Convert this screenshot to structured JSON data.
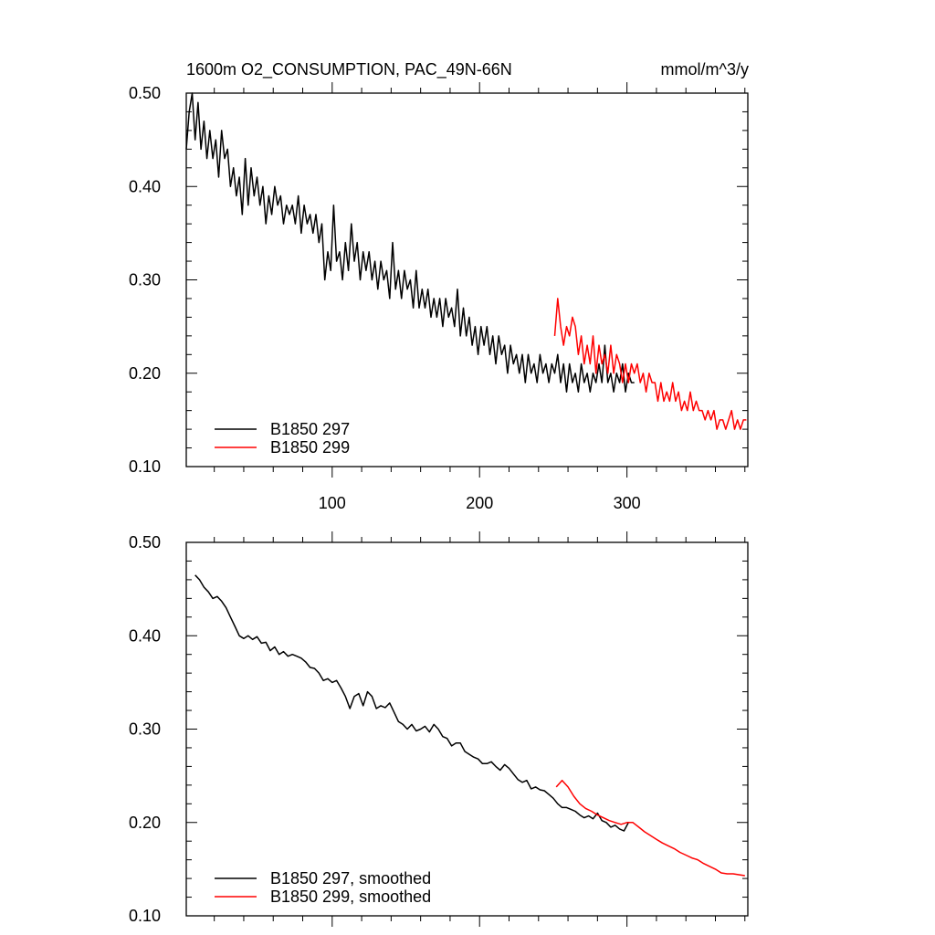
{
  "chart_data": [
    {
      "type": "line",
      "title": "1600m O2_CONSUMPTION, PAC_49N-66N",
      "units": "mmol/m^3/y",
      "xlabel": "",
      "ylabel": "",
      "xlim": [
        1,
        382
      ],
      "ylim": [
        0.1,
        0.5
      ],
      "xticks": [
        100,
        200,
        300
      ],
      "xtick_labels": [
        "100",
        "200",
        "300"
      ],
      "yticks": [
        0.1,
        0.2,
        0.3,
        0.4,
        0.5
      ],
      "ytick_labels": [
        "0.10",
        "0.20",
        "0.30",
        "0.40",
        "0.50"
      ],
      "legend_position": "bottom-left",
      "series": [
        {
          "name": "B1850 297",
          "color": "#000000",
          "x": [
            1,
            3,
            5,
            7,
            9,
            11,
            13,
            15,
            17,
            19,
            21,
            23,
            25,
            27,
            29,
            31,
            33,
            35,
            37,
            39,
            41,
            43,
            45,
            47,
            49,
            51,
            53,
            55,
            57,
            59,
            61,
            63,
            65,
            67,
            69,
            71,
            73,
            75,
            77,
            79,
            81,
            83,
            85,
            87,
            89,
            91,
            93,
            95,
            97,
            99,
            101,
            103,
            105,
            107,
            109,
            111,
            113,
            115,
            117,
            119,
            121,
            123,
            125,
            127,
            129,
            131,
            133,
            135,
            137,
            139,
            141,
            143,
            145,
            147,
            149,
            151,
            153,
            155,
            157,
            159,
            161,
            163,
            165,
            167,
            169,
            171,
            173,
            175,
            177,
            179,
            181,
            183,
            185,
            187,
            189,
            191,
            193,
            195,
            197,
            199,
            201,
            203,
            205,
            207,
            209,
            211,
            213,
            215,
            217,
            219,
            221,
            223,
            225,
            227,
            229,
            231,
            233,
            235,
            237,
            239,
            241,
            243,
            245,
            247,
            249,
            251,
            253,
            255,
            257,
            259,
            261,
            263,
            265,
            267,
            269,
            271,
            273,
            275,
            277,
            279,
            281,
            283,
            285,
            287,
            289,
            291,
            293,
            295,
            297,
            299,
            301,
            303,
            305
          ],
          "values": [
            0.44,
            0.48,
            0.5,
            0.45,
            0.49,
            0.44,
            0.47,
            0.43,
            0.46,
            0.43,
            0.45,
            0.41,
            0.46,
            0.43,
            0.44,
            0.4,
            0.42,
            0.39,
            0.41,
            0.37,
            0.43,
            0.38,
            0.42,
            0.39,
            0.41,
            0.38,
            0.4,
            0.36,
            0.39,
            0.37,
            0.4,
            0.38,
            0.39,
            0.36,
            0.38,
            0.37,
            0.38,
            0.36,
            0.39,
            0.35,
            0.38,
            0.36,
            0.37,
            0.35,
            0.37,
            0.34,
            0.36,
            0.3,
            0.33,
            0.31,
            0.38,
            0.32,
            0.33,
            0.3,
            0.34,
            0.31,
            0.36,
            0.32,
            0.34,
            0.3,
            0.33,
            0.31,
            0.33,
            0.3,
            0.32,
            0.29,
            0.32,
            0.3,
            0.31,
            0.28,
            0.34,
            0.29,
            0.31,
            0.28,
            0.31,
            0.29,
            0.3,
            0.27,
            0.31,
            0.27,
            0.29,
            0.27,
            0.29,
            0.26,
            0.28,
            0.26,
            0.28,
            0.25,
            0.28,
            0.26,
            0.27,
            0.25,
            0.29,
            0.24,
            0.27,
            0.24,
            0.26,
            0.23,
            0.25,
            0.22,
            0.25,
            0.23,
            0.25,
            0.22,
            0.24,
            0.21,
            0.24,
            0.22,
            0.23,
            0.2,
            0.23,
            0.21,
            0.22,
            0.2,
            0.22,
            0.19,
            0.22,
            0.2,
            0.21,
            0.19,
            0.22,
            0.2,
            0.21,
            0.19,
            0.21,
            0.2,
            0.22,
            0.19,
            0.21,
            0.18,
            0.21,
            0.19,
            0.2,
            0.18,
            0.21,
            0.19,
            0.2,
            0.18,
            0.2,
            0.19,
            0.21,
            0.19,
            0.23,
            0.19,
            0.2,
            0.18,
            0.2,
            0.19,
            0.21,
            0.18,
            0.2,
            0.19,
            0.19
          ]
        },
        {
          "name": "B1850 299",
          "color": "#ff0000",
          "x": [
            251,
            253,
            255,
            257,
            259,
            261,
            263,
            265,
            267,
            269,
            271,
            273,
            275,
            277,
            279,
            281,
            283,
            285,
            287,
            289,
            291,
            293,
            295,
            297,
            299,
            301,
            303,
            305,
            307,
            309,
            311,
            313,
            315,
            317,
            319,
            321,
            323,
            325,
            327,
            329,
            331,
            333,
            335,
            337,
            339,
            341,
            343,
            345,
            347,
            349,
            351,
            353,
            355,
            357,
            359,
            361,
            363,
            365,
            367,
            369,
            371,
            373,
            375,
            377,
            379,
            381
          ],
          "values": [
            0.24,
            0.28,
            0.25,
            0.23,
            0.25,
            0.24,
            0.26,
            0.25,
            0.22,
            0.24,
            0.21,
            0.23,
            0.21,
            0.24,
            0.2,
            0.23,
            0.21,
            0.22,
            0.2,
            0.23,
            0.2,
            0.22,
            0.21,
            0.19,
            0.21,
            0.19,
            0.21,
            0.2,
            0.21,
            0.19,
            0.2,
            0.18,
            0.2,
            0.19,
            0.19,
            0.17,
            0.19,
            0.17,
            0.18,
            0.17,
            0.19,
            0.17,
            0.18,
            0.16,
            0.17,
            0.16,
            0.18,
            0.16,
            0.17,
            0.16,
            0.16,
            0.15,
            0.16,
            0.15,
            0.16,
            0.14,
            0.15,
            0.15,
            0.14,
            0.15,
            0.16,
            0.14,
            0.15,
            0.14,
            0.15,
            0.15
          ]
        }
      ]
    },
    {
      "type": "line",
      "title": "",
      "xlabel": "",
      "ylabel": "",
      "xlim": [
        1,
        382
      ],
      "ylim": [
        0.1,
        0.5
      ],
      "xticks": [
        100,
        200,
        300
      ],
      "xtick_labels": [
        "",
        "",
        ""
      ],
      "yticks": [
        0.1,
        0.2,
        0.3,
        0.4,
        0.5
      ],
      "ytick_labels": [
        "0.10",
        "0.20",
        "0.30",
        "0.40",
        "0.50"
      ],
      "legend_position": "bottom-left",
      "series": [
        {
          "name": "B1850 297, smoothed",
          "color": "#000000",
          "x": [
            7,
            10,
            13,
            16,
            19,
            22,
            25,
            28,
            31,
            34,
            37,
            40,
            43,
            46,
            49,
            52,
            55,
            58,
            61,
            64,
            67,
            70,
            73,
            76,
            79,
            82,
            85,
            88,
            91,
            94,
            97,
            100,
            103,
            106,
            109,
            112,
            115,
            118,
            121,
            124,
            127,
            130,
            133,
            136,
            139,
            142,
            145,
            148,
            151,
            154,
            157,
            160,
            163,
            166,
            169,
            172,
            175,
            178,
            181,
            184,
            187,
            190,
            193,
            196,
            199,
            202,
            205,
            208,
            211,
            214,
            217,
            220,
            223,
            226,
            229,
            232,
            235,
            238,
            241,
            244,
            247,
            250,
            253,
            256,
            259,
            262,
            265,
            268,
            271,
            274,
            277,
            280,
            283,
            286,
            289,
            292,
            295,
            298,
            301,
            304
          ],
          "values": [
            0.465,
            0.46,
            0.452,
            0.447,
            0.44,
            0.442,
            0.437,
            0.43,
            0.42,
            0.41,
            0.4,
            0.397,
            0.4,
            0.396,
            0.399,
            0.392,
            0.393,
            0.384,
            0.388,
            0.38,
            0.383,
            0.378,
            0.38,
            0.378,
            0.376,
            0.372,
            0.366,
            0.365,
            0.36,
            0.352,
            0.354,
            0.35,
            0.352,
            0.344,
            0.335,
            0.322,
            0.335,
            0.338,
            0.325,
            0.34,
            0.335,
            0.322,
            0.325,
            0.323,
            0.328,
            0.318,
            0.308,
            0.305,
            0.3,
            0.305,
            0.298,
            0.3,
            0.303,
            0.297,
            0.305,
            0.3,
            0.292,
            0.29,
            0.282,
            0.285,
            0.285,
            0.276,
            0.273,
            0.27,
            0.268,
            0.263,
            0.263,
            0.265,
            0.26,
            0.256,
            0.262,
            0.258,
            0.252,
            0.246,
            0.243,
            0.245,
            0.236,
            0.238,
            0.235,
            0.234,
            0.23,
            0.226,
            0.22,
            0.216,
            0.216,
            0.214,
            0.212,
            0.208,
            0.205,
            0.207,
            0.204,
            0.21,
            0.202,
            0.2,
            0.195,
            0.197,
            0.193,
            0.191,
            0.2,
            0.2
          ]
        },
        {
          "name": "B1850 299, smoothed",
          "color": "#ff0000",
          "x": [
            252,
            256,
            260,
            264,
            268,
            272,
            276,
            280,
            284,
            288,
            292,
            296,
            300,
            304,
            308,
            312,
            316,
            320,
            324,
            328,
            332,
            336,
            340,
            344,
            348,
            352,
            356,
            360,
            364,
            368,
            372,
            376,
            380
          ],
          "values": [
            0.238,
            0.245,
            0.238,
            0.228,
            0.22,
            0.215,
            0.212,
            0.208,
            0.205,
            0.202,
            0.2,
            0.198,
            0.2,
            0.2,
            0.195,
            0.19,
            0.186,
            0.182,
            0.178,
            0.175,
            0.172,
            0.168,
            0.165,
            0.162,
            0.16,
            0.156,
            0.153,
            0.15,
            0.146,
            0.145,
            0.145,
            0.144,
            0.143
          ]
        }
      ]
    }
  ]
}
